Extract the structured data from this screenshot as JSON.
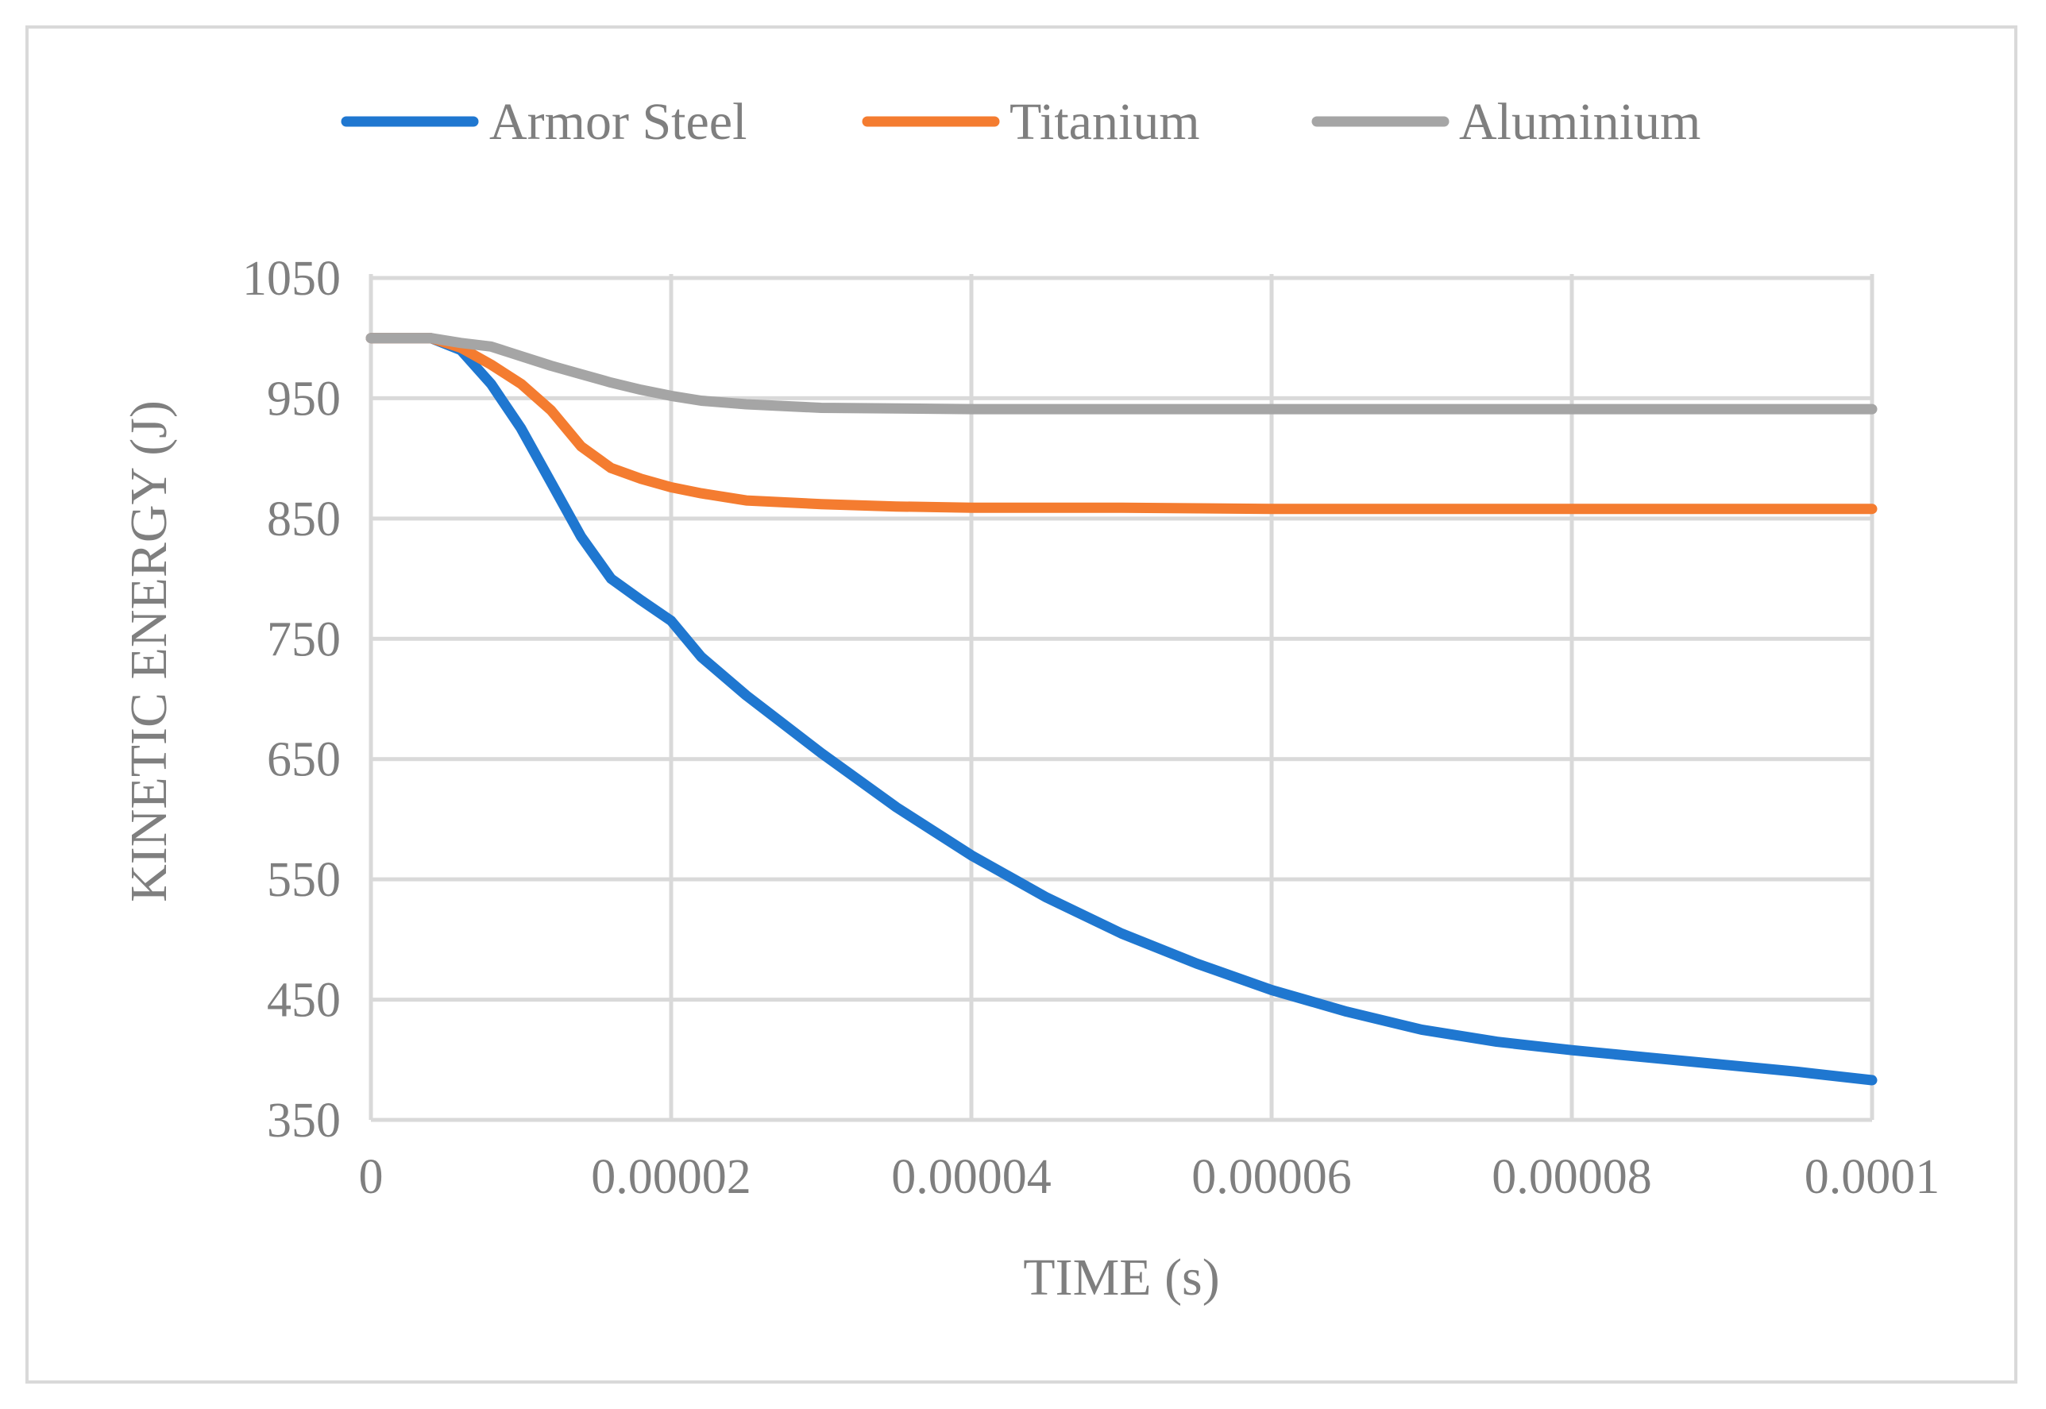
{
  "chart_data": {
    "type": "line",
    "title": "",
    "xlabel": "TIME (s)",
    "ylabel": "KINETIC ENERGY (J)",
    "xlim": [
      0,
      0.0001
    ],
    "ylim": [
      350,
      1050
    ],
    "x_ticks": [
      0,
      2e-05,
      4e-05,
      6e-05,
      8e-05,
      0.0001
    ],
    "x_tick_labels": [
      "0",
      "0.00002",
      "0.00004",
      "0.00006",
      "0.00008",
      "0.0001"
    ],
    "y_ticks": [
      350,
      450,
      550,
      650,
      750,
      850,
      950,
      1050
    ],
    "y_tick_labels": [
      "350",
      "450",
      "550",
      "650",
      "750",
      "850",
      "950",
      "1050"
    ],
    "grid": true,
    "legend_position": "top",
    "series": [
      {
        "name": "Armor Steel",
        "color": "#1f77d0",
        "x": [
          0,
          4e-06,
          6e-06,
          8e-06,
          1e-05,
          1.2e-05,
          1.4e-05,
          1.6e-05,
          1.8e-05,
          2e-05,
          2.2e-05,
          2.5e-05,
          3e-05,
          3.5e-05,
          4e-05,
          4.5e-05,
          5e-05,
          5.5e-05,
          6e-05,
          6.5e-05,
          7e-05,
          7.5e-05,
          8e-05,
          8.5e-05,
          9e-05,
          9.5e-05,
          0.0001
        ],
        "values": [
          1000,
          1000,
          990,
          962,
          925,
          880,
          835,
          800,
          782,
          765,
          735,
          703,
          655,
          610,
          570,
          535,
          505,
          480,
          458,
          440,
          425,
          415,
          408,
          402,
          396,
          390,
          383
        ]
      },
      {
        "name": "Titanium",
        "color": "#f47c30",
        "x": [
          0,
          4e-06,
          6e-06,
          8e-06,
          1e-05,
          1.2e-05,
          1.4e-05,
          1.6e-05,
          1.8e-05,
          2e-05,
          2.2e-05,
          2.5e-05,
          3e-05,
          3.5e-05,
          4e-05,
          5e-05,
          6e-05,
          7e-05,
          8e-05,
          9e-05,
          0.0001
        ],
        "values": [
          1000,
          1000,
          992,
          978,
          962,
          940,
          910,
          892,
          883,
          876,
          871,
          865,
          862,
          860,
          859,
          859,
          858,
          858,
          858,
          858,
          858
        ]
      },
      {
        "name": "Aluminium",
        "color": "#a5a5a5",
        "x": [
          0,
          4e-06,
          6e-06,
          8e-06,
          1e-05,
          1.2e-05,
          1.4e-05,
          1.6e-05,
          1.8e-05,
          2e-05,
          2.2e-05,
          2.5e-05,
          3e-05,
          4e-05,
          5e-05,
          6e-05,
          7e-05,
          8e-05,
          9e-05,
          0.0001
        ],
        "values": [
          1000,
          1000,
          996,
          993,
          985,
          977,
          970,
          963,
          957,
          952,
          948,
          945,
          942,
          941,
          941,
          941,
          941,
          941,
          941,
          941
        ]
      }
    ]
  }
}
